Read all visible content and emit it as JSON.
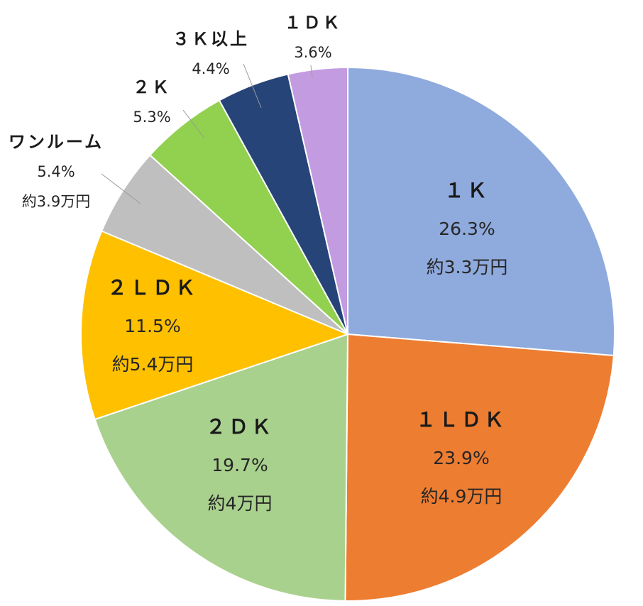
{
  "chart_data": {
    "type": "pie",
    "title": "",
    "slices": [
      {
        "label": "１Ｋ",
        "percent": 26.3,
        "value_label": "26.3%",
        "price": "約3.3万円",
        "color": "#8FAADC"
      },
      {
        "label": "１ＬＤＫ",
        "percent": 23.9,
        "value_label": "23.9%",
        "price": "約4.9万円",
        "color": "#ED7D31"
      },
      {
        "label": "２ＤＫ",
        "percent": 19.7,
        "value_label": "19.7%",
        "price": "約4万円",
        "color": "#A9D18E"
      },
      {
        "label": "２ＬＤＫ",
        "percent": 11.5,
        "value_label": "11.5%",
        "price": "約5.4万円",
        "color": "#FFC000"
      },
      {
        "label": "ワンルーム",
        "percent": 5.4,
        "value_label": "5.4%",
        "price": "約3.9万円",
        "color": "#BFBFBF"
      },
      {
        "label": "２Ｋ",
        "percent": 5.3,
        "value_label": "5.3%",
        "price": "",
        "color": "#92D050"
      },
      {
        "label": "３Ｋ以上",
        "percent": 4.4,
        "value_label": "4.4%",
        "price": "",
        "color": "#264478"
      },
      {
        "label": "１ＤＫ",
        "percent": 3.6,
        "value_label": "3.6%",
        "price": "",
        "color": "#C39BE0"
      }
    ],
    "start_angle_deg": 0,
    "direction": "clockwise",
    "legend": "none"
  }
}
